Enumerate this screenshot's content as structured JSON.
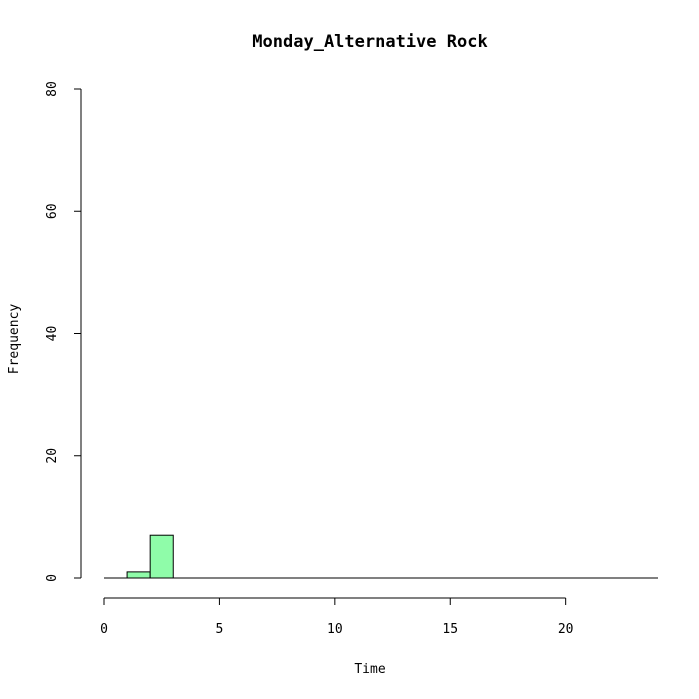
{
  "chart_data": {
    "type": "bar",
    "title": "Monday_Alternative Rock",
    "xlabel": "Time",
    "ylabel": "Frequency",
    "xlim": [
      0,
      24
    ],
    "ylim": [
      0,
      80
    ],
    "xticks": [
      0,
      5,
      10,
      15,
      20
    ],
    "yticks": [
      0,
      20,
      40,
      60,
      80
    ],
    "bin_width": 1,
    "bins": [
      {
        "start": 0,
        "end": 1,
        "count": 0
      },
      {
        "start": 1,
        "end": 2,
        "count": 1
      },
      {
        "start": 2,
        "end": 3,
        "count": 7
      },
      {
        "start": 3,
        "end": 4,
        "count": 0
      },
      {
        "start": 4,
        "end": 5,
        "count": 0
      },
      {
        "start": 5,
        "end": 6,
        "count": 0
      },
      {
        "start": 6,
        "end": 7,
        "count": 0
      },
      {
        "start": 7,
        "end": 8,
        "count": 0
      },
      {
        "start": 8,
        "end": 9,
        "count": 0
      },
      {
        "start": 9,
        "end": 10,
        "count": 0
      },
      {
        "start": 10,
        "end": 11,
        "count": 0
      },
      {
        "start": 11,
        "end": 12,
        "count": 0
      },
      {
        "start": 12,
        "end": 13,
        "count": 0
      },
      {
        "start": 13,
        "end": 14,
        "count": 0
      },
      {
        "start": 14,
        "end": 15,
        "count": 0
      },
      {
        "start": 15,
        "end": 16,
        "count": 0
      },
      {
        "start": 16,
        "end": 17,
        "count": 0
      },
      {
        "start": 17,
        "end": 18,
        "count": 0
      },
      {
        "start": 18,
        "end": 19,
        "count": 0
      },
      {
        "start": 19,
        "end": 20,
        "count": 0
      },
      {
        "start": 20,
        "end": 21,
        "count": 0
      },
      {
        "start": 21,
        "end": 22,
        "count": 0
      },
      {
        "start": 22,
        "end": 23,
        "count": 0
      },
      {
        "start": 23,
        "end": 24,
        "count": 0
      }
    ],
    "bar_color": "#8ffca9",
    "grid": false,
    "legend": "none"
  }
}
